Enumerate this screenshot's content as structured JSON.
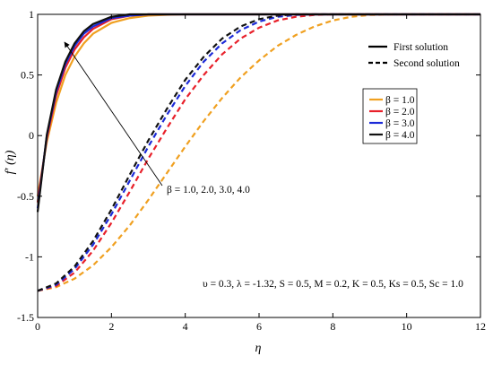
{
  "chart_data": {
    "type": "line",
    "title": "",
    "xlabel": "η",
    "ylabel": "f′ (η)",
    "xlim": [
      0,
      12
    ],
    "ylim": [
      -1.5,
      1
    ],
    "xticks": [
      "0",
      "2",
      "4",
      "6",
      "8",
      "10",
      "12"
    ],
    "yticks": [
      "-1.5",
      "-1",
      "-0.5",
      "0",
      "0.5",
      "1"
    ],
    "grid": false,
    "style_legend": {
      "position": "top-right",
      "entries": [
        {
          "label": "First solution",
          "style": "solid"
        },
        {
          "label": "Second solution",
          "style": "dashed"
        }
      ]
    },
    "color_legend": {
      "position": "right",
      "entries": [
        {
          "label": "β = 1.0",
          "color": "#f0a020"
        },
        {
          "label": "β = 2.0",
          "color": "#e8202a"
        },
        {
          "label": "β = 3.0",
          "color": "#1c2ad8"
        },
        {
          "label": "β = 4.0",
          "color": "#111111"
        }
      ]
    },
    "annotations": {
      "arrow_label": "β = 1.0, 2.0, 3.0, 4.0",
      "parameters": "υ = 0.3, λ = -1.32, S = 0.5, M = 0.2, K = 0.5, Ks = 0.5, Sc = 1.0"
    },
    "series": [
      {
        "name": "β = 1.0",
        "solution": "first",
        "color": "#f0a020",
        "x": [
          0,
          0.25,
          0.5,
          0.75,
          1,
          1.25,
          1.5,
          2,
          2.5,
          3,
          3.5,
          4,
          5,
          6,
          12
        ],
        "y": [
          -0.5,
          -0.05,
          0.27,
          0.5,
          0.65,
          0.76,
          0.84,
          0.93,
          0.97,
          0.99,
          0.996,
          1,
          1,
          1,
          1
        ]
      },
      {
        "name": "β = 2.0",
        "solution": "first",
        "color": "#e8202a",
        "x": [
          0,
          0.25,
          0.5,
          0.75,
          1,
          1.25,
          1.5,
          2,
          2.5,
          3,
          3.5,
          4,
          5,
          6,
          12
        ],
        "y": [
          -0.55,
          -0.02,
          0.33,
          0.56,
          0.71,
          0.81,
          0.88,
          0.96,
          0.99,
          1,
          1,
          1,
          1,
          1,
          1
        ]
      },
      {
        "name": "β = 3.0",
        "solution": "first",
        "color": "#1c2ad8",
        "x": [
          0,
          0.25,
          0.5,
          0.75,
          1,
          1.25,
          1.5,
          2,
          2.5,
          3,
          3.5,
          4,
          5,
          6,
          12
        ],
        "y": [
          -0.6,
          0.0,
          0.36,
          0.59,
          0.74,
          0.84,
          0.9,
          0.97,
          0.99,
          1,
          1,
          1,
          1,
          1,
          1
        ]
      },
      {
        "name": "β = 4.0",
        "solution": "first",
        "color": "#111111",
        "x": [
          0,
          0.25,
          0.5,
          0.75,
          1,
          1.25,
          1.5,
          2,
          2.5,
          3,
          3.5,
          4,
          5,
          6,
          12
        ],
        "y": [
          -0.63,
          0.01,
          0.38,
          0.61,
          0.76,
          0.86,
          0.92,
          0.98,
          1,
          1,
          1,
          1,
          1,
          1,
          1
        ]
      },
      {
        "name": "β = 1.0",
        "solution": "second",
        "color": "#f0a020",
        "x": [
          0,
          0.5,
          1,
          1.5,
          2,
          2.5,
          3,
          3.5,
          4,
          4.5,
          5,
          5.5,
          6,
          6.5,
          7,
          7.5,
          8,
          8.5,
          9,
          10,
          12
        ],
        "y": [
          -1.28,
          -1.25,
          -1.18,
          -1.07,
          -0.92,
          -0.74,
          -0.53,
          -0.31,
          -0.09,
          0.12,
          0.31,
          0.48,
          0.62,
          0.74,
          0.83,
          0.9,
          0.95,
          0.98,
          0.995,
          1,
          1
        ]
      },
      {
        "name": "β = 2.0",
        "solution": "second",
        "color": "#e8202a",
        "x": [
          0,
          0.5,
          1,
          1.5,
          2,
          2.5,
          3,
          3.5,
          4,
          4.5,
          5,
          5.5,
          6,
          6.5,
          7,
          7.5,
          8,
          9,
          12
        ],
        "y": [
          -1.28,
          -1.24,
          -1.13,
          -0.95,
          -0.72,
          -0.46,
          -0.19,
          0.06,
          0.3,
          0.5,
          0.67,
          0.8,
          0.89,
          0.95,
          0.98,
          0.995,
          1,
          1,
          1
        ]
      },
      {
        "name": "β = 3.0",
        "solution": "second",
        "color": "#1c2ad8",
        "x": [
          0,
          0.5,
          1,
          1.5,
          2,
          2.5,
          3,
          3.5,
          4,
          4.5,
          5,
          5.5,
          6,
          6.5,
          7,
          7.5,
          8,
          12
        ],
        "y": [
          -1.28,
          -1.23,
          -1.1,
          -0.9,
          -0.65,
          -0.37,
          -0.09,
          0.17,
          0.41,
          0.61,
          0.76,
          0.87,
          0.94,
          0.98,
          0.995,
          1,
          1,
          1
        ]
      },
      {
        "name": "β = 4.0",
        "solution": "second",
        "color": "#111111",
        "x": [
          0,
          0.5,
          1,
          1.5,
          2,
          2.5,
          3,
          3.5,
          4,
          4.5,
          5,
          5.5,
          6,
          6.5,
          7,
          7.5,
          12
        ],
        "y": [
          -1.28,
          -1.22,
          -1.08,
          -0.87,
          -0.61,
          -0.32,
          -0.04,
          0.22,
          0.46,
          0.65,
          0.8,
          0.9,
          0.96,
          0.99,
          1,
          1,
          1
        ]
      }
    ]
  }
}
